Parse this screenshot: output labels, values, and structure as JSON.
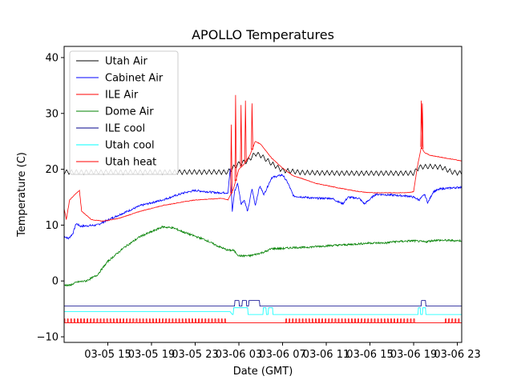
{
  "chart_data": {
    "type": "line",
    "title": "APOLLO Temperatures",
    "xlabel": "Date (GMT)",
    "ylabel": "Temperature (C)",
    "x_unit": "hours since 03-05 11:00 GMT",
    "xlim": [
      0,
      36.4
    ],
    "ylim": [
      -11,
      42
    ],
    "x_ticks": [
      {
        "x": 4,
        "label": "03-05 15"
      },
      {
        "x": 8,
        "label": "03-05 19"
      },
      {
        "x": 12,
        "label": "03-05 23"
      },
      {
        "x": 16,
        "label": "03-06 03"
      },
      {
        "x": 20,
        "label": "03-06 07"
      },
      {
        "x": 24,
        "label": "03-06 11"
      },
      {
        "x": 28,
        "label": "03-06 15"
      },
      {
        "x": 32,
        "label": "03-06 19"
      },
      {
        "x": 36,
        "label": "03-06 23"
      }
    ],
    "y_ticks": [
      {
        "y": -10,
        "label": "−10"
      },
      {
        "y": 0,
        "label": "0"
      },
      {
        "y": 10,
        "label": "10"
      },
      {
        "y": 20,
        "label": "20"
      },
      {
        "y": 30,
        "label": "30"
      },
      {
        "y": 40,
        "label": "40"
      }
    ],
    "legend_position": "top-left",
    "series": [
      {
        "name": "Utah Air",
        "color": "#000000",
        "points": [
          [
            0,
            19.5
          ],
          [
            15,
            19.5
          ],
          [
            15.5,
            20.3
          ],
          [
            16,
            21
          ],
          [
            16.8,
            21.5
          ],
          [
            17.5,
            22.8
          ],
          [
            18,
            22.5
          ],
          [
            19,
            21
          ],
          [
            20,
            19.8
          ],
          [
            22,
            19.4
          ],
          [
            26,
            19.3
          ],
          [
            32,
            19.3
          ],
          [
            32.5,
            20.4
          ],
          [
            33.5,
            20.5
          ],
          [
            34.5,
            20.4
          ],
          [
            35.5,
            19.5
          ],
          [
            36.4,
            19.3
          ]
        ],
        "sawtooth_amp": 0.45,
        "sawtooth_period": 0.45
      },
      {
        "name": "Cabinet Air",
        "color": "#0000ff",
        "points": [
          [
            0,
            8
          ],
          [
            0.4,
            7.6
          ],
          [
            0.8,
            8.5
          ],
          [
            1.1,
            10.3
          ],
          [
            1.5,
            9.8
          ],
          [
            3,
            10
          ],
          [
            5,
            11.8
          ],
          [
            7,
            13.5
          ],
          [
            9,
            14.5
          ],
          [
            11,
            15.8
          ],
          [
            12,
            16.2
          ],
          [
            14,
            15.8
          ],
          [
            15,
            15.8
          ],
          [
            15.2,
            20
          ],
          [
            15.4,
            12.5
          ],
          [
            15.6,
            16
          ],
          [
            15.9,
            17.5
          ],
          [
            16.2,
            13.8
          ],
          [
            16.5,
            14.5
          ],
          [
            16.8,
            12.4
          ],
          [
            17.2,
            16.5
          ],
          [
            17.5,
            13.5
          ],
          [
            17.9,
            17
          ],
          [
            18.3,
            15.5
          ],
          [
            19,
            18.5
          ],
          [
            20,
            19
          ],
          [
            20.5,
            17.5
          ],
          [
            21,
            15.2
          ],
          [
            23,
            14.8
          ],
          [
            24.5,
            14.8
          ],
          [
            25.5,
            13.8
          ],
          [
            26,
            15
          ],
          [
            27,
            14.8
          ],
          [
            27.5,
            13.8
          ],
          [
            28.5,
            15.5
          ],
          [
            29,
            15.5
          ],
          [
            31.5,
            15.2
          ],
          [
            32,
            15
          ],
          [
            32.5,
            14.5
          ],
          [
            33,
            15.5
          ],
          [
            33.3,
            14
          ],
          [
            33.8,
            16
          ],
          [
            34.5,
            16.5
          ],
          [
            36.4,
            16.8
          ]
        ],
        "noise": 0.35
      },
      {
        "name": "ILE Air",
        "color": "#ff0000",
        "points": [
          [
            0,
            13
          ],
          [
            0.2,
            11
          ],
          [
            0.5,
            14.5
          ],
          [
            1,
            15.5
          ],
          [
            1.4,
            16.2
          ],
          [
            1.6,
            12.5
          ],
          [
            2.5,
            11
          ],
          [
            3.5,
            10.7
          ],
          [
            5,
            11.2
          ],
          [
            7,
            12.5
          ],
          [
            9,
            13.5
          ],
          [
            11,
            14.2
          ],
          [
            12,
            14.5
          ],
          [
            14.5,
            14.8
          ],
          [
            15,
            14.5
          ],
          [
            15.5,
            16.5
          ],
          [
            16,
            20
          ],
          [
            16.5,
            21
          ],
          [
            17,
            22.5
          ],
          [
            17.5,
            25
          ],
          [
            18,
            24.5
          ],
          [
            19,
            22
          ],
          [
            20,
            20.2
          ],
          [
            21,
            18.8
          ],
          [
            22,
            18.2
          ],
          [
            23,
            17.5
          ],
          [
            25,
            16.7
          ],
          [
            27,
            16
          ],
          [
            28,
            15.8
          ],
          [
            30,
            15.8
          ],
          [
            31.5,
            15.8
          ],
          [
            32,
            16
          ],
          [
            32.3,
            20
          ],
          [
            32.7,
            24
          ],
          [
            33,
            23
          ],
          [
            33.5,
            22.5
          ],
          [
            36.4,
            21.5
          ]
        ],
        "spikes": [
          [
            15.3,
            28
          ],
          [
            15.7,
            33.3
          ],
          [
            16.2,
            31.5
          ],
          [
            16.6,
            32.3
          ],
          [
            17.2,
            31.8
          ],
          [
            32.7,
            32.3
          ],
          [
            32.8,
            31.8
          ]
        ],
        "noise": 0.1
      },
      {
        "name": "Dome Air",
        "color": "#008000",
        "points": [
          [
            0,
            -0.7
          ],
          [
            0.5,
            -0.8
          ],
          [
            1.2,
            -0.2
          ],
          [
            2,
            0
          ],
          [
            3,
            1
          ],
          [
            4,
            3.5
          ],
          [
            5.5,
            6
          ],
          [
            7,
            8
          ],
          [
            8,
            8.8
          ],
          [
            9,
            9.7
          ],
          [
            10,
            9.5
          ],
          [
            11,
            8.7
          ],
          [
            12,
            8
          ],
          [
            13,
            7.3
          ],
          [
            14,
            6.3
          ],
          [
            15,
            5.5
          ],
          [
            15.5,
            5.5
          ],
          [
            16,
            4.5
          ],
          [
            17,
            4.5
          ],
          [
            18,
            5
          ],
          [
            18.5,
            5.3
          ],
          [
            19,
            5.8
          ],
          [
            20,
            5.8
          ],
          [
            21,
            6
          ],
          [
            22,
            6
          ],
          [
            24,
            6.3
          ],
          [
            26,
            6.5
          ],
          [
            28,
            6.8
          ],
          [
            29.5,
            6.8
          ],
          [
            30,
            7
          ],
          [
            32,
            7.2
          ],
          [
            33,
            7
          ],
          [
            34,
            7.3
          ],
          [
            36.4,
            7.2
          ]
        ],
        "noise": 0.35
      },
      {
        "name": "ILE cool",
        "color": "#00008b",
        "points": [
          [
            0,
            -4.5
          ],
          [
            36.4,
            -4.5
          ]
        ],
        "pulses": [
          [
            15.6,
            16
          ],
          [
            16.3,
            16.7
          ],
          [
            16.9,
            17.9
          ],
          [
            32.7,
            33.1
          ]
        ],
        "pulse_height": 1
      },
      {
        "name": "Utah cool",
        "color": "#00ffff",
        "points": [
          [
            0,
            -5.5
          ],
          [
            15.2,
            -5.5
          ],
          [
            15.4,
            -6
          ],
          [
            19,
            -6
          ],
          [
            22,
            -6
          ],
          [
            26,
            -6
          ],
          [
            30,
            -6
          ],
          [
            36.4,
            -6
          ]
        ],
        "pulses": [
          [
            15.5,
            16.8
          ],
          [
            18.2,
            18.5
          ],
          [
            18.7,
            19.1
          ],
          [
            32.4,
            32.6
          ],
          [
            32.8,
            33.1
          ]
        ],
        "pulse_height": 1.2
      },
      {
        "name": "Utah heat",
        "color": "#ff0000",
        "baseline": -7.5,
        "pulse_top": -6.8,
        "pulse_ranges": [
          [
            0,
            15
          ],
          [
            20.3,
            32.2
          ],
          [
            34.9,
            36.4
          ]
        ],
        "pulse_period": 0.3
      }
    ]
  }
}
